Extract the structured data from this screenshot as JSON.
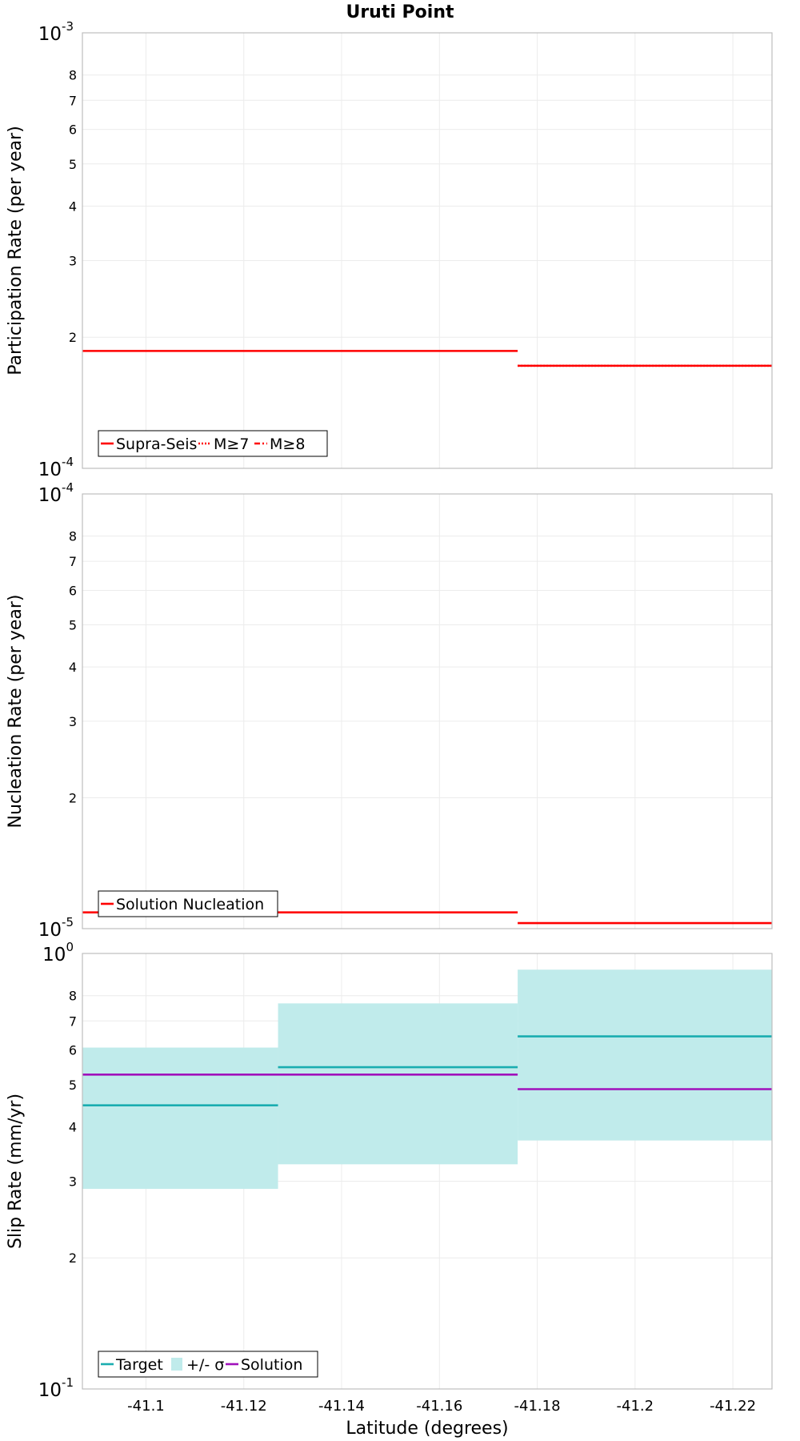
{
  "title": "Uruti Point",
  "xlabel": "Latitude (degrees)",
  "colors": {
    "red": "#ff0000",
    "teal": "#1aadb0",
    "band": "#c0ebeb",
    "purple": "#a010bb",
    "grid": "#ececec",
    "frame": "#bdbdbd"
  },
  "chart_data": [
    {
      "type": "line",
      "ylabel": "Participation Rate (per year)",
      "yscale": "log",
      "ylim": [
        0.0001,
        0.001
      ],
      "xlim": [
        -41.087,
        -41.228
      ],
      "xticks": [
        -41.1,
        -41.12,
        -41.14,
        -41.16,
        -41.18,
        -41.2,
        -41.22
      ],
      "xtick_labels": [
        "-41.1",
        "-41.12",
        "-41.14",
        "-41.16",
        "-41.18",
        "-41.2",
        "-41.22"
      ],
      "ytick_labels": [
        {
          "value": 0.0001,
          "base": "10",
          "exp": "-4",
          "major": true
        },
        {
          "value": 0.0002,
          "label": "2"
        },
        {
          "value": 0.0003,
          "label": "3"
        },
        {
          "value": 0.0004,
          "label": "4"
        },
        {
          "value": 0.0005,
          "label": "5"
        },
        {
          "value": 0.0006,
          "label": "6"
        },
        {
          "value": 0.0007,
          "label": "7"
        },
        {
          "value": 0.0008,
          "label": "8"
        },
        {
          "value": 0.001,
          "base": "10",
          "exp": "-3",
          "major": true
        }
      ],
      "series": [
        {
          "name": "Supra-Seis",
          "style": "solid",
          "color": "#ff0000",
          "segments": [
            {
              "x": [
                -41.087,
                -41.176
              ],
              "y": 0.000186
            },
            {
              "x": [
                -41.176,
                -41.228
              ],
              "y": 0.000172
            }
          ]
        },
        {
          "name": "M≥7",
          "style": "dotted",
          "color": "#ff0000",
          "segments": [
            {
              "x": [
                -41.176,
                -41.228
              ],
              "y": 0.000172
            }
          ]
        },
        {
          "name": "M≥8",
          "style": "dashdot",
          "color": "#ff0000",
          "segments": []
        }
      ],
      "legend": [
        {
          "label": "Supra-Seis",
          "style": "solid",
          "color": "#ff0000"
        },
        {
          "label": "M≥7",
          "style": "dotted",
          "color": "#ff0000"
        },
        {
          "label": "M≥8",
          "style": "dashdot",
          "color": "#ff0000"
        }
      ],
      "legend_position": "bottom-left"
    },
    {
      "type": "line",
      "ylabel": "Nucleation Rate (per year)",
      "yscale": "log",
      "ylim": [
        1e-05,
        0.0001
      ],
      "xlim": [
        -41.087,
        -41.228
      ],
      "xticks": [
        -41.1,
        -41.12,
        -41.14,
        -41.16,
        -41.18,
        -41.2,
        -41.22
      ],
      "ytick_labels": [
        {
          "value": 1e-05,
          "base": "10",
          "exp": "-5",
          "major": true
        },
        {
          "value": 2e-05,
          "label": "2"
        },
        {
          "value": 3e-05,
          "label": "3"
        },
        {
          "value": 4e-05,
          "label": "4"
        },
        {
          "value": 5e-05,
          "label": "5"
        },
        {
          "value": 6e-05,
          "label": "6"
        },
        {
          "value": 7e-05,
          "label": "7"
        },
        {
          "value": 8e-05,
          "label": "8"
        },
        {
          "value": 0.0001,
          "base": "10",
          "exp": "-4",
          "major": true
        }
      ],
      "series": [
        {
          "name": "Solution Nucleation",
          "style": "solid",
          "color": "#ff0000",
          "segments": [
            {
              "x": [
                -41.087,
                -41.176
              ],
              "y": 1.09e-05
            },
            {
              "x": [
                -41.176,
                -41.228
              ],
              "y": 1.03e-05
            }
          ]
        }
      ],
      "legend": [
        {
          "label": "Solution Nucleation",
          "style": "solid",
          "color": "#ff0000"
        }
      ],
      "legend_position": "bottom-left"
    },
    {
      "type": "line",
      "ylabel": "Slip Rate (mm/yr)",
      "yscale": "log",
      "ylim": [
        0.1,
        1.0
      ],
      "xlim": [
        -41.087,
        -41.228
      ],
      "xticks": [
        -41.1,
        -41.12,
        -41.14,
        -41.16,
        -41.18,
        -41.2,
        -41.22
      ],
      "ytick_labels": [
        {
          "value": 0.1,
          "base": "10",
          "exp": "-1",
          "major": true
        },
        {
          "value": 0.2,
          "label": "2"
        },
        {
          "value": 0.3,
          "label": "3"
        },
        {
          "value": 0.4,
          "label": "4"
        },
        {
          "value": 0.5,
          "label": "5"
        },
        {
          "value": 0.6,
          "label": "6"
        },
        {
          "value": 0.7,
          "label": "7"
        },
        {
          "value": 0.8,
          "label": "8"
        },
        {
          "value": 1.0,
          "base": "10",
          "exp": "0",
          "major": true
        }
      ],
      "bands": [
        {
          "name": "+/- σ",
          "color": "#c0ebeb",
          "segments": [
            {
              "x": [
                -41.087,
                -41.127
              ],
              "y": [
                0.288,
                0.608
              ]
            },
            {
              "x": [
                -41.127,
                -41.176
              ],
              "y": [
                0.328,
                0.768
              ]
            },
            {
              "x": [
                -41.176,
                -41.228
              ],
              "y": [
                0.372,
                0.918
              ]
            }
          ]
        }
      ],
      "series": [
        {
          "name": "Target",
          "style": "solid",
          "color": "#1aadb0",
          "segments": [
            {
              "x": [
                -41.087,
                -41.127
              ],
              "y": 0.448
            },
            {
              "x": [
                -41.127,
                -41.176
              ],
              "y": 0.548
            },
            {
              "x": [
                -41.176,
                -41.228
              ],
              "y": 0.645
            }
          ]
        },
        {
          "name": "Solution",
          "style": "solid",
          "color": "#a010bb",
          "segments": [
            {
              "x": [
                -41.087,
                -41.176
              ],
              "y": 0.527
            },
            {
              "x": [
                -41.176,
                -41.228
              ],
              "y": 0.488
            }
          ]
        }
      ],
      "legend": [
        {
          "label": "Target",
          "style": "solid",
          "color": "#1aadb0"
        },
        {
          "label": "+/- σ",
          "style": "band",
          "color": "#c0ebeb"
        },
        {
          "label": "Solution",
          "style": "solid",
          "color": "#a010bb"
        }
      ],
      "legend_position": "bottom-left"
    }
  ]
}
